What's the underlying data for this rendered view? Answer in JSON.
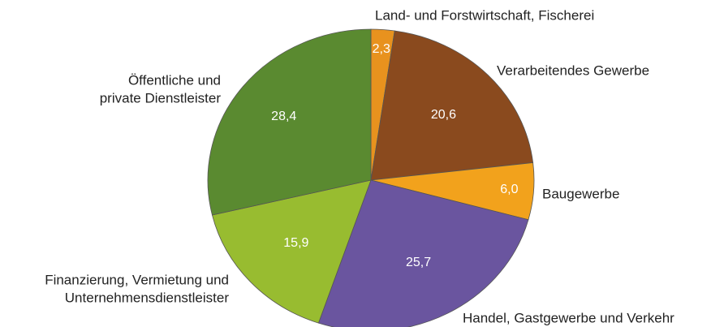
{
  "chart_data": {
    "type": "pie",
    "categories": [
      [
        "Land- und Forstwirtschaft, Fischerei"
      ],
      [
        "Verarbeitendes Gewerbe"
      ],
      [
        "Baugewerbe"
      ],
      [
        "Handel, Gastgewerbe und Verkehr"
      ],
      [
        "Finanzierung, Vermietung und",
        "Unternehmensdienstleister"
      ],
      [
        "Öffentliche und",
        "private Dienstleister"
      ]
    ],
    "values": [
      2.3,
      20.6,
      6.0,
      25.7,
      15.9,
      28.4
    ],
    "value_labels": [
      "2,3",
      "20,6",
      "6,0",
      "25,7",
      "15,9",
      "28,4"
    ],
    "colors": [
      "#e8921e",
      "#8a4a1e",
      "#f2a21c",
      "#6a559f",
      "#98bc30",
      "#5a8a30"
    ]
  }
}
